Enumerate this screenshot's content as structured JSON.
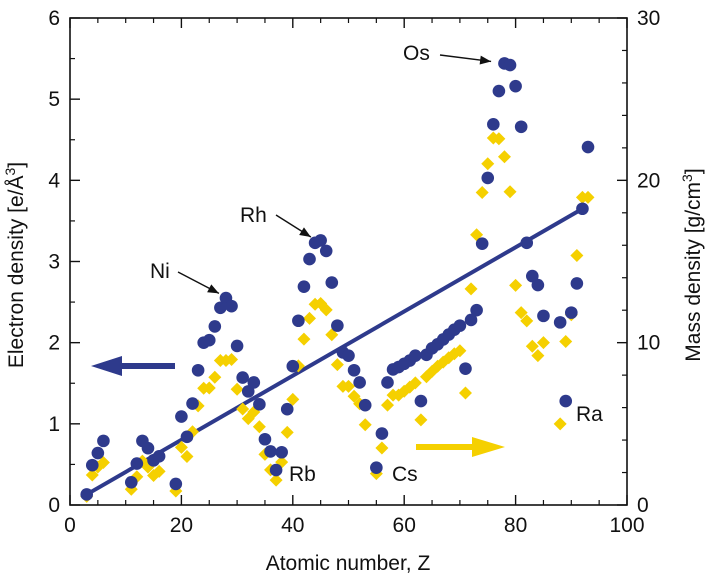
{
  "chart_data": {
    "type": "scatter",
    "xlabel": "Atomic number, Z",
    "ylabel_left_prefix": "Electron density [e/Å",
    "ylabel_left_sup": "3",
    "ylabel_left_suffix": "]",
    "ylabel_right_prefix": "Mass density [g/cm",
    "ylabel_right_sup": "3",
    "ylabel_right_suffix": "]",
    "xlim": [
      0,
      100
    ],
    "ylim_left": [
      0,
      6
    ],
    "ylim_right": [
      0,
      30
    ],
    "x_ticks": [
      "0",
      "20",
      "40",
      "60",
      "80",
      "100"
    ],
    "y_left_ticks": [
      "0",
      "1",
      "2",
      "3",
      "4",
      "5",
      "6"
    ],
    "y_right_ticks": [
      "0",
      "10",
      "20",
      "30"
    ],
    "grid": false,
    "colors": {
      "electron": "#2e3a8c",
      "mass": "#f5d000",
      "axis": "#111111"
    },
    "series": [
      {
        "axis": "left",
        "marker": "circle",
        "color": "#2e3a8c",
        "points": [
          [
            3,
            0.13
          ],
          [
            4,
            0.49
          ],
          [
            5,
            0.64
          ],
          [
            6,
            0.79
          ],
          [
            11,
            0.28
          ],
          [
            12,
            0.51
          ],
          [
            13,
            0.79
          ],
          [
            14,
            0.7
          ],
          [
            15,
            0.55
          ],
          [
            16,
            0.6
          ],
          [
            19,
            0.26
          ],
          [
            20,
            1.09
          ],
          [
            21,
            0.84
          ],
          [
            22,
            1.25
          ],
          [
            23,
            1.66
          ],
          [
            24,
            2.0
          ],
          [
            25,
            2.03
          ],
          [
            26,
            2.2
          ],
          [
            27,
            2.43
          ],
          [
            28,
            2.55
          ],
          [
            29,
            2.45
          ],
          [
            30,
            1.96
          ],
          [
            31,
            1.57
          ],
          [
            32,
            1.4
          ],
          [
            33,
            1.51
          ],
          [
            34,
            1.24
          ],
          [
            35,
            0.81
          ],
          [
            36,
            0.66
          ],
          [
            37,
            0.43
          ],
          [
            38,
            0.65
          ],
          [
            39,
            1.18
          ],
          [
            40,
            1.71
          ],
          [
            41,
            2.27
          ],
          [
            42,
            2.69
          ],
          [
            43,
            3.03
          ],
          [
            44,
            3.23
          ],
          [
            45,
            3.26
          ],
          [
            46,
            3.13
          ],
          [
            47,
            2.74
          ],
          [
            48,
            2.21
          ],
          [
            49,
            1.88
          ],
          [
            50,
            1.84
          ],
          [
            51,
            1.66
          ],
          [
            52,
            1.51
          ],
          [
            53,
            1.23
          ],
          [
            55,
            0.46
          ],
          [
            56,
            0.88
          ],
          [
            57,
            1.51
          ],
          [
            58,
            1.67
          ],
          [
            59,
            1.7
          ],
          [
            60,
            1.74
          ],
          [
            61,
            1.78
          ],
          [
            62,
            1.84
          ],
          [
            63,
            1.28
          ],
          [
            64,
            1.85
          ],
          [
            65,
            1.93
          ],
          [
            66,
            1.98
          ],
          [
            67,
            2.04
          ],
          [
            68,
            2.1
          ],
          [
            69,
            2.16
          ],
          [
            70,
            2.21
          ],
          [
            71,
            1.68
          ],
          [
            72,
            2.28
          ],
          [
            73,
            2.4
          ],
          [
            74,
            3.22
          ],
          [
            75,
            4.03
          ],
          [
            76,
            4.69
          ],
          [
            77,
            5.1
          ],
          [
            78,
            5.44
          ],
          [
            79,
            5.42
          ],
          [
            80,
            5.16
          ],
          [
            81,
            4.66
          ],
          [
            82,
            3.23
          ],
          [
            83,
            2.82
          ],
          [
            84,
            2.71
          ],
          [
            85,
            2.33
          ],
          [
            88,
            2.25
          ],
          [
            89,
            1.28
          ],
          [
            90,
            2.37
          ],
          [
            91,
            2.73
          ],
          [
            92,
            3.65
          ],
          [
            93,
            4.41
          ]
        ]
      },
      {
        "axis": "right",
        "marker": "diamond",
        "color": "#f5d000",
        "points": [
          [
            3,
            0.53
          ],
          [
            4,
            1.85
          ],
          [
            5,
            2.34
          ],
          [
            6,
            2.62
          ],
          [
            11,
            0.97
          ],
          [
            12,
            1.74
          ],
          [
            13,
            2.7
          ],
          [
            14,
            2.33
          ],
          [
            15,
            1.82
          ],
          [
            16,
            2.07
          ],
          [
            19,
            0.86
          ],
          [
            20,
            3.55
          ],
          [
            21,
            2.99
          ],
          [
            22,
            4.51
          ],
          [
            23,
            6.11
          ],
          [
            24,
            7.19
          ],
          [
            25,
            7.21
          ],
          [
            26,
            7.87
          ],
          [
            27,
            8.9
          ],
          [
            28,
            8.9
          ],
          [
            29,
            8.96
          ],
          [
            30,
            7.13
          ],
          [
            31,
            5.91
          ],
          [
            32,
            5.32
          ],
          [
            33,
            5.73
          ],
          [
            34,
            4.82
          ],
          [
            35,
            3.12
          ],
          [
            36,
            2.16
          ],
          [
            37,
            1.53
          ],
          [
            38,
            2.64
          ],
          [
            39,
            4.47
          ],
          [
            40,
            6.51
          ],
          [
            41,
            8.57
          ],
          [
            42,
            10.22
          ],
          [
            43,
            11.5
          ],
          [
            44,
            12.37
          ],
          [
            45,
            12.41
          ],
          [
            46,
            12.02
          ],
          [
            47,
            10.49
          ],
          [
            48,
            8.65
          ],
          [
            49,
            7.31
          ],
          [
            50,
            7.31
          ],
          [
            51,
            6.7
          ],
          [
            52,
            6.24
          ],
          [
            53,
            4.94
          ],
          [
            55,
            1.93
          ],
          [
            56,
            3.51
          ],
          [
            57,
            6.15
          ],
          [
            58,
            6.77
          ],
          [
            59,
            6.77
          ],
          [
            60,
            7.01
          ],
          [
            61,
            7.26
          ],
          [
            62,
            7.52
          ],
          [
            63,
            5.24
          ],
          [
            64,
            7.9
          ],
          [
            65,
            8.23
          ],
          [
            66,
            8.55
          ],
          [
            67,
            8.8
          ],
          [
            68,
            9.07
          ],
          [
            69,
            9.32
          ],
          [
            70,
            9.5
          ],
          [
            71,
            6.9
          ],
          [
            72,
            13.31
          ],
          [
            73,
            16.65
          ],
          [
            74,
            19.25
          ],
          [
            75,
            21.02
          ],
          [
            76,
            22.61
          ],
          [
            77,
            22.56
          ],
          [
            78,
            21.45
          ],
          [
            79,
            19.3
          ],
          [
            80,
            13.53
          ],
          [
            81,
            11.85
          ],
          [
            82,
            11.34
          ],
          [
            83,
            9.78
          ],
          [
            84,
            9.2
          ],
          [
            85,
            10.0
          ],
          [
            88,
            5.0
          ],
          [
            89,
            10.07
          ],
          [
            90,
            11.72
          ],
          [
            91,
            15.37
          ],
          [
            92,
            18.95
          ],
          [
            93,
            18.95
          ]
        ]
      }
    ],
    "trend_line": {
      "x": [
        3,
        92
      ],
      "y": [
        0.13,
        3.65
      ],
      "color": "#2e3a8c"
    },
    "annotations": [
      {
        "id": "os",
        "text": "Os",
        "x": 76.5,
        "y": 5.44
      },
      {
        "id": "rh",
        "text": "Rh",
        "x": 44.5,
        "y": 3.24
      },
      {
        "id": "ni",
        "text": "Ni",
        "x": 28,
        "y": 2.57
      },
      {
        "id": "rb",
        "text": "Rb",
        "x": 37,
        "y": 0.43
      },
      {
        "id": "cs",
        "text": "Cs",
        "x": 55,
        "y": 0.46
      },
      {
        "id": "ra",
        "text": "Ra",
        "x": 88,
        "y": 1.12
      }
    ]
  }
}
